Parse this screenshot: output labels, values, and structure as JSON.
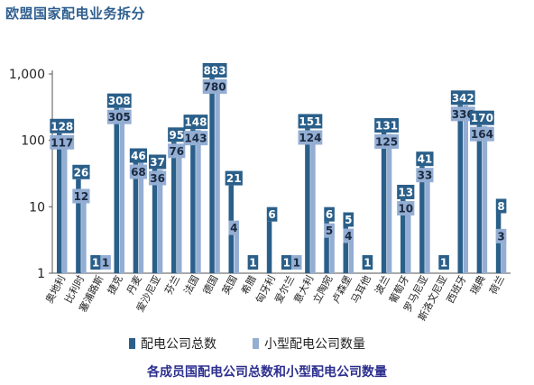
{
  "page_title": "欧盟国家配电业务拆分",
  "caption": "各成员国配电公司总数和小型配电公司数量",
  "chart_data": {
    "type": "bar",
    "title": "欧盟国家配电业务拆分",
    "xlabel": "",
    "ylabel": "",
    "yscale": "log",
    "ylim": [
      1,
      1000
    ],
    "yticks": [
      1,
      10,
      100,
      1000
    ],
    "ytick_labels": [
      "1",
      "10",
      "100",
      "1,000"
    ],
    "grid": false,
    "legend_position": "bottom",
    "categories": [
      "奥地利",
      "比利时",
      "塞浦路斯",
      "捷克",
      "丹麦",
      "爱沙尼亚",
      "芬兰",
      "法国",
      "德国",
      "英国",
      "希腊",
      "匈牙利",
      "爱尔兰",
      "意大利",
      "立陶宛",
      "卢森堡",
      "马耳他",
      "波兰",
      "葡萄牙",
      "罗马尼亚",
      "斯洛文尼亚",
      "西班牙",
      "瑞典",
      "荷兰"
    ],
    "series": [
      {
        "name": "配电公司总数",
        "color": "#2a5f8a",
        "values": [
          128,
          26,
          1,
          308,
          46,
          37,
          95,
          148,
          883,
          21,
          1,
          6,
          1,
          151,
          6,
          5,
          1,
          131,
          13,
          41,
          1,
          342,
          170,
          8
        ]
      },
      {
        "name": "小型配电公司数量",
        "color": "#94aed3",
        "values": [
          117,
          12,
          1,
          305,
          68,
          36,
          76,
          143,
          780,
          4,
          null,
          null,
          1,
          124,
          5,
          4,
          null,
          125,
          10,
          33,
          null,
          336,
          164,
          3
        ]
      }
    ]
  }
}
